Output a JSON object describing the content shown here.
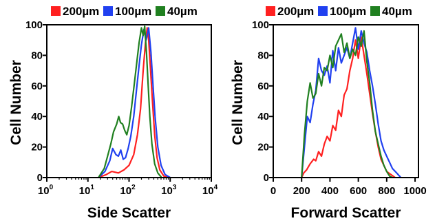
{
  "chart_data": [
    {
      "type": "line",
      "xlabel": "Side Scatter",
      "ylabel": "Cell Number",
      "xscale": "log",
      "xlim": [
        1,
        10000
      ],
      "ylim": [
        0,
        100
      ],
      "x_tick_labels": [
        {
          "base": "10",
          "exp": "0"
        },
        {
          "base": "10",
          "exp": "1"
        },
        {
          "base": "10",
          "exp": "2"
        },
        {
          "base": "10",
          "exp": "3"
        },
        {
          "base": "10",
          "exp": "4"
        }
      ],
      "x_tick_values": [
        1,
        10,
        100,
        1000,
        10000
      ],
      "y_ticks": [
        0,
        20,
        40,
        60,
        80,
        100
      ],
      "grid": false,
      "legend": "top",
      "series": [
        {
          "name": "200µm",
          "color": "#ff2020",
          "points": [
            [
              18,
              0
            ],
            [
              28,
              2
            ],
            [
              38,
              4
            ],
            [
              55,
              3
            ],
            [
              75,
              5
            ],
            [
              100,
              8
            ],
            [
              130,
              15
            ],
            [
              160,
              28
            ],
            [
              190,
              45
            ],
            [
              220,
              70
            ],
            [
              250,
              88
            ],
            [
              275,
              98
            ],
            [
              300,
              90
            ],
            [
              330,
              72
            ],
            [
              370,
              50
            ],
            [
              420,
              28
            ],
            [
              480,
              13
            ],
            [
              560,
              5
            ],
            [
              700,
              1
            ],
            [
              900,
              0
            ]
          ]
        },
        {
          "name": "100µm",
          "color": "#2040f0",
          "points": [
            [
              18,
              0
            ],
            [
              26,
              4
            ],
            [
              34,
              11
            ],
            [
              40,
              19
            ],
            [
              48,
              15
            ],
            [
              55,
              14
            ],
            [
              63,
              18
            ],
            [
              72,
              12
            ],
            [
              82,
              13
            ],
            [
              95,
              19
            ],
            [
              110,
              27
            ],
            [
              130,
              40
            ],
            [
              150,
              56
            ],
            [
              175,
              73
            ],
            [
              200,
              87
            ],
            [
              230,
              97
            ],
            [
              260,
              90
            ],
            [
              300,
              98
            ],
            [
              340,
              82
            ],
            [
              380,
              62
            ],
            [
              430,
              40
            ],
            [
              500,
              20
            ],
            [
              600,
              8
            ],
            [
              750,
              2
            ],
            [
              1000,
              0
            ]
          ]
        },
        {
          "name": "40µm",
          "color": "#208020",
          "points": [
            [
              18,
              0
            ],
            [
              25,
              6
            ],
            [
              30,
              14
            ],
            [
              36,
              22
            ],
            [
              42,
              30
            ],
            [
              50,
              35
            ],
            [
              56,
              40
            ],
            [
              62,
              36
            ],
            [
              70,
              35
            ],
            [
              78,
              31
            ],
            [
              88,
              28
            ],
            [
              100,
              34
            ],
            [
              115,
              46
            ],
            [
              135,
              62
            ],
            [
              155,
              76
            ],
            [
              175,
              88
            ],
            [
              200,
              98
            ],
            [
              220,
              93
            ],
            [
              240,
              99
            ],
            [
              265,
              82
            ],
            [
              290,
              62
            ],
            [
              320,
              40
            ],
            [
              360,
              22
            ],
            [
              420,
              9
            ],
            [
              500,
              3
            ],
            [
              620,
              0
            ]
          ]
        }
      ]
    },
    {
      "type": "line",
      "xlabel": "Forward Scatter",
      "ylabel": "Cell Number",
      "xlim": [
        0,
        1024
      ],
      "ylim": [
        0,
        100
      ],
      "x_ticks": [
        0,
        200,
        400,
        600,
        800,
        1000
      ],
      "y_ticks": [
        0,
        20,
        40,
        60,
        80,
        100
      ],
      "grid": false,
      "legend": "top",
      "series": [
        {
          "name": "200µm",
          "color": "#ff2020",
          "points": [
            [
              200,
              0
            ],
            [
              215,
              3
            ],
            [
              235,
              5
            ],
            [
              260,
              9
            ],
            [
              285,
              12
            ],
            [
              300,
              11
            ],
            [
              320,
              17
            ],
            [
              340,
              14
            ],
            [
              360,
              22
            ],
            [
              380,
              27
            ],
            [
              400,
              24
            ],
            [
              420,
              34
            ],
            [
              440,
              31
            ],
            [
              460,
              44
            ],
            [
              480,
              40
            ],
            [
              500,
              54
            ],
            [
              520,
              58
            ],
            [
              540,
              70
            ],
            [
              560,
              78
            ],
            [
              580,
              90
            ],
            [
              600,
              78
            ],
            [
              620,
              92
            ],
            [
              640,
              80
            ],
            [
              660,
              68
            ],
            [
              680,
              55
            ],
            [
              700,
              42
            ],
            [
              720,
              30
            ],
            [
              740,
              20
            ],
            [
              760,
              12
            ],
            [
              780,
              8
            ],
            [
              800,
              4
            ],
            [
              830,
              2
            ],
            [
              860,
              0
            ]
          ]
        },
        {
          "name": "100µm",
          "color": "#2040f0",
          "points": [
            [
              200,
              0
            ],
            [
              220,
              20
            ],
            [
              240,
              40
            ],
            [
              260,
              36
            ],
            [
              280,
              48
            ],
            [
              300,
              57
            ],
            [
              320,
              78
            ],
            [
              340,
              70
            ],
            [
              360,
              67
            ],
            [
              380,
              73
            ],
            [
              400,
              62
            ],
            [
              420,
              83
            ],
            [
              440,
              70
            ],
            [
              460,
              85
            ],
            [
              480,
              75
            ],
            [
              500,
              80
            ],
            [
              520,
              85
            ],
            [
              540,
              78
            ],
            [
              560,
              88
            ],
            [
              580,
              98
            ],
            [
              600,
              84
            ],
            [
              620,
              96
            ],
            [
              640,
              88
            ],
            [
              660,
              82
            ],
            [
              680,
              70
            ],
            [
              700,
              60
            ],
            [
              720,
              48
            ],
            [
              740,
              35
            ],
            [
              760,
              24
            ],
            [
              780,
              18
            ],
            [
              800,
              14
            ],
            [
              820,
              10
            ],
            [
              840,
              6
            ],
            [
              870,
              3
            ],
            [
              900,
              0
            ]
          ]
        },
        {
          "name": "40µm",
          "color": "#208020",
          "points": [
            [
              200,
              0
            ],
            [
              220,
              28
            ],
            [
              240,
              50
            ],
            [
              260,
              62
            ],
            [
              280,
              52
            ],
            [
              300,
              55
            ],
            [
              320,
              68
            ],
            [
              340,
              60
            ],
            [
              360,
              72
            ],
            [
              380,
              70
            ],
            [
              400,
              80
            ],
            [
              420,
              72
            ],
            [
              440,
              86
            ],
            [
              460,
              90
            ],
            [
              480,
              94
            ],
            [
              500,
              82
            ],
            [
              520,
              88
            ],
            [
              540,
              78
            ],
            [
              560,
              84
            ],
            [
              580,
              80
            ],
            [
              600,
              92
            ],
            [
              620,
              86
            ],
            [
              640,
              96
            ],
            [
              660,
              76
            ],
            [
              680,
              62
            ],
            [
              700,
              44
            ],
            [
              720,
              30
            ],
            [
              740,
              22
            ],
            [
              760,
              14
            ],
            [
              780,
              8
            ],
            [
              800,
              4
            ],
            [
              820,
              1
            ],
            [
              840,
              0
            ]
          ]
        }
      ]
    }
  ]
}
